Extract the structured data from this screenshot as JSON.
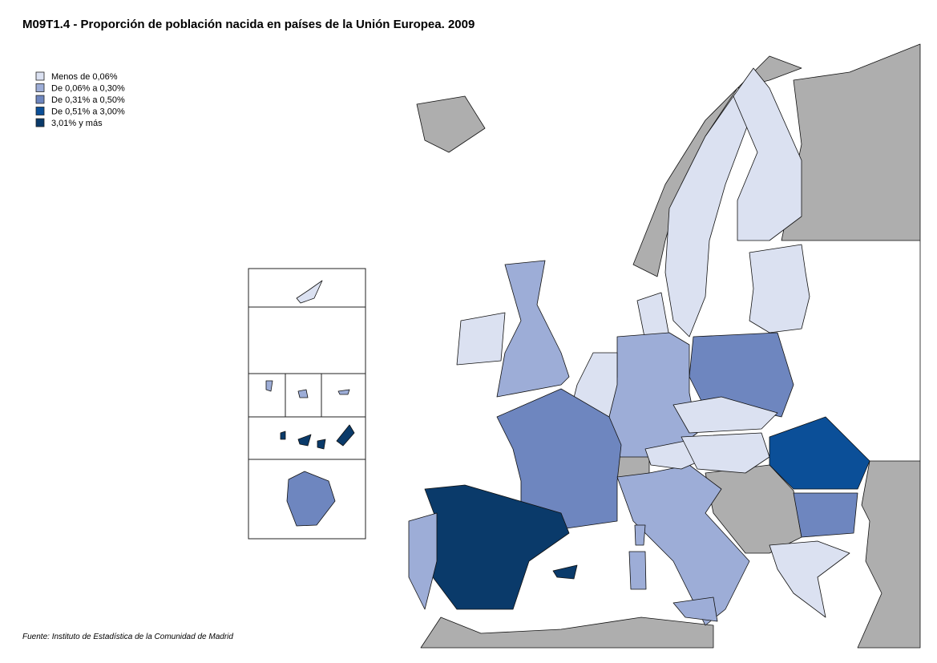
{
  "title": "M09T1.4 - Proporción de población nacida en países de la Unión Europea. 2009",
  "legend": [
    {
      "label": "Menos de 0,06%",
      "color": "#dbe1f1"
    },
    {
      "label": "De 0,06% a 0,30%",
      "color": "#9dadd7"
    },
    {
      "label": "De 0,31% a 0,50%",
      "color": "#6e86bf"
    },
    {
      "label": "De 0,51% a 3,00%",
      "color": "#0b4f98"
    },
    {
      "label": "3,01% y más",
      "color": "#0a3a6a"
    }
  ],
  "source": "Fuente: Instituto de Estadística de la Comunidad de Madrid"
}
